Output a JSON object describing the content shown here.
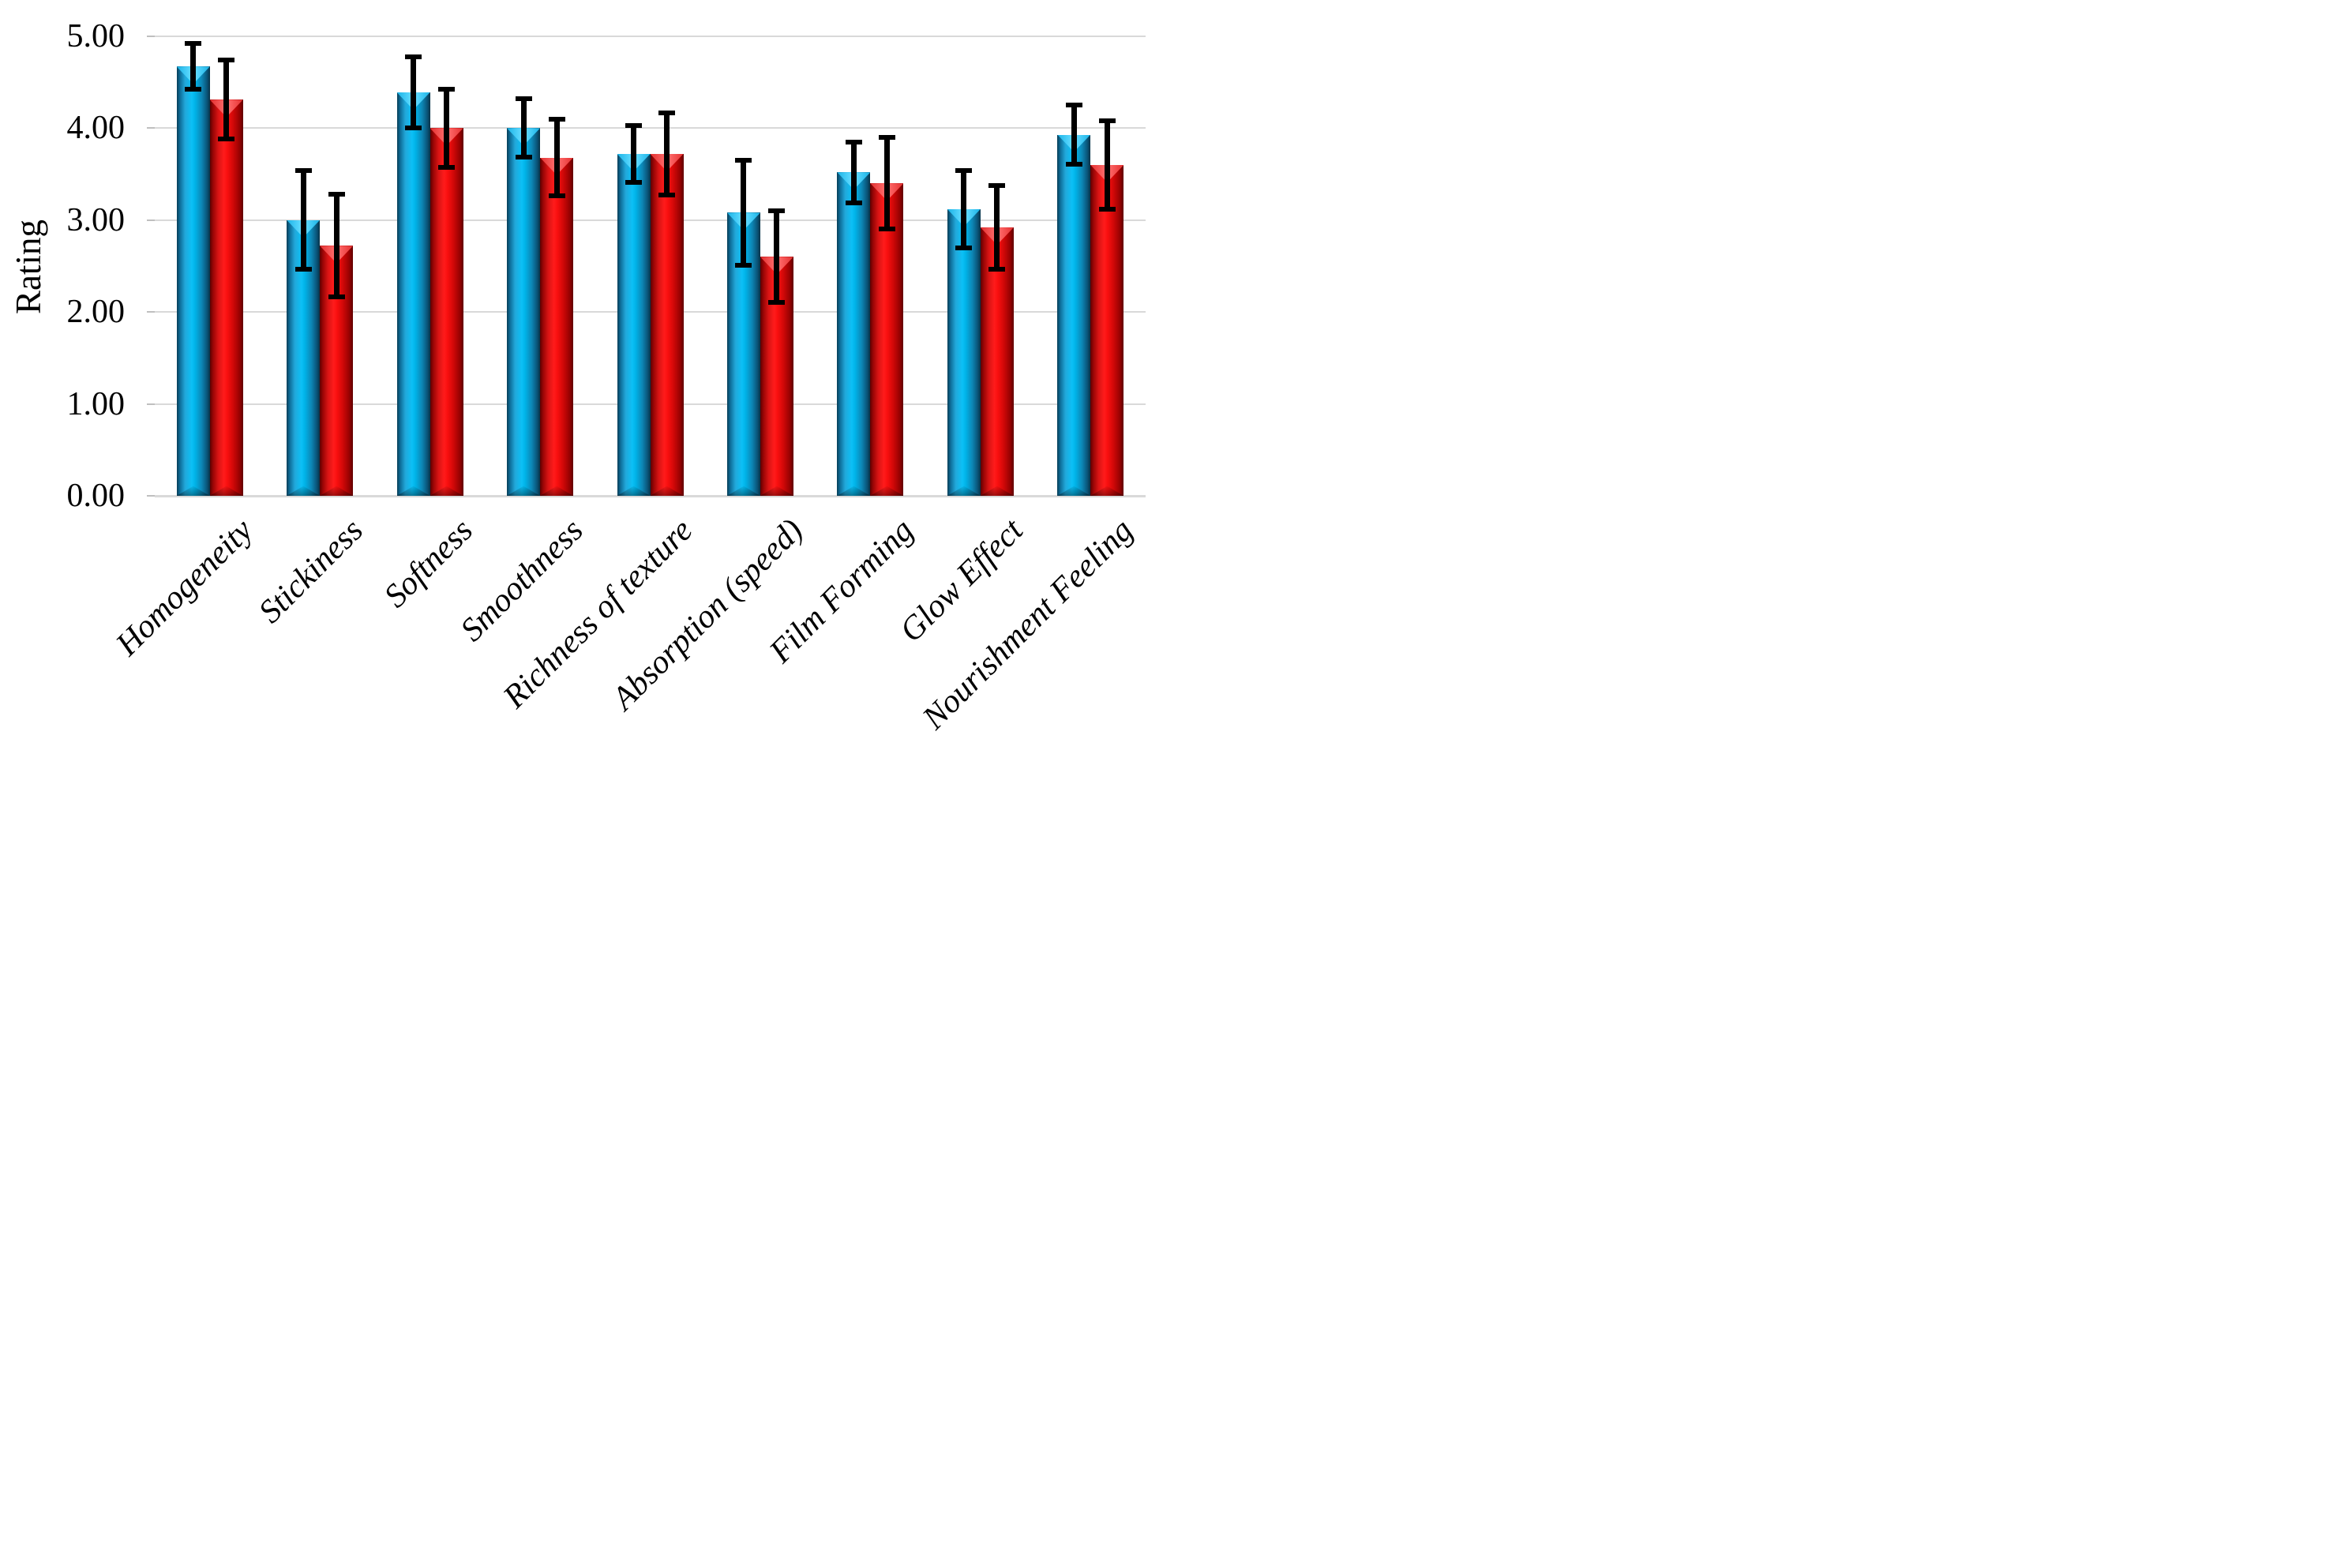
{
  "chart_data": {
    "type": "bar",
    "title": "",
    "xlabel": "",
    "ylabel": "Rating",
    "categories": [
      "Homogeneity",
      "Stickiness",
      "Softness",
      "Smoothness",
      "Richness of texture",
      "Absorption (speed)",
      "Film Forming",
      "Glow Effect",
      "Nourishment Feeling"
    ],
    "series": [
      {
        "name": "blue-series",
        "color": "#00B4EF",
        "values": [
          4.67,
          3.0,
          4.39,
          4.0,
          3.72,
          3.08,
          3.52,
          3.12,
          3.93
        ],
        "errors": [
          0.24,
          0.53,
          0.38,
          0.31,
          0.3,
          0.56,
          0.32,
          0.41,
          0.31
        ]
      },
      {
        "name": "red-series",
        "color": "#FF1B1B",
        "values": [
          4.31,
          2.72,
          4.0,
          3.68,
          3.72,
          2.6,
          3.4,
          2.92,
          3.6
        ],
        "errors": [
          0.42,
          0.55,
          0.42,
          0.41,
          0.44,
          0.49,
          0.49,
          0.45,
          0.47
        ]
      }
    ],
    "ylim": [
      0,
      5
    ],
    "ytick_step": 1,
    "ytick_labels": [
      "0.00",
      "1.00",
      "2.00",
      "3.00",
      "4.00",
      "5.00"
    ],
    "grid": "horizontal",
    "legend_position": "none",
    "error_bars": true
  },
  "colors": {
    "background": "#FFFFFF",
    "gridline": "#D9D9D9",
    "error_bar": "#000000",
    "text": "#000000"
  }
}
